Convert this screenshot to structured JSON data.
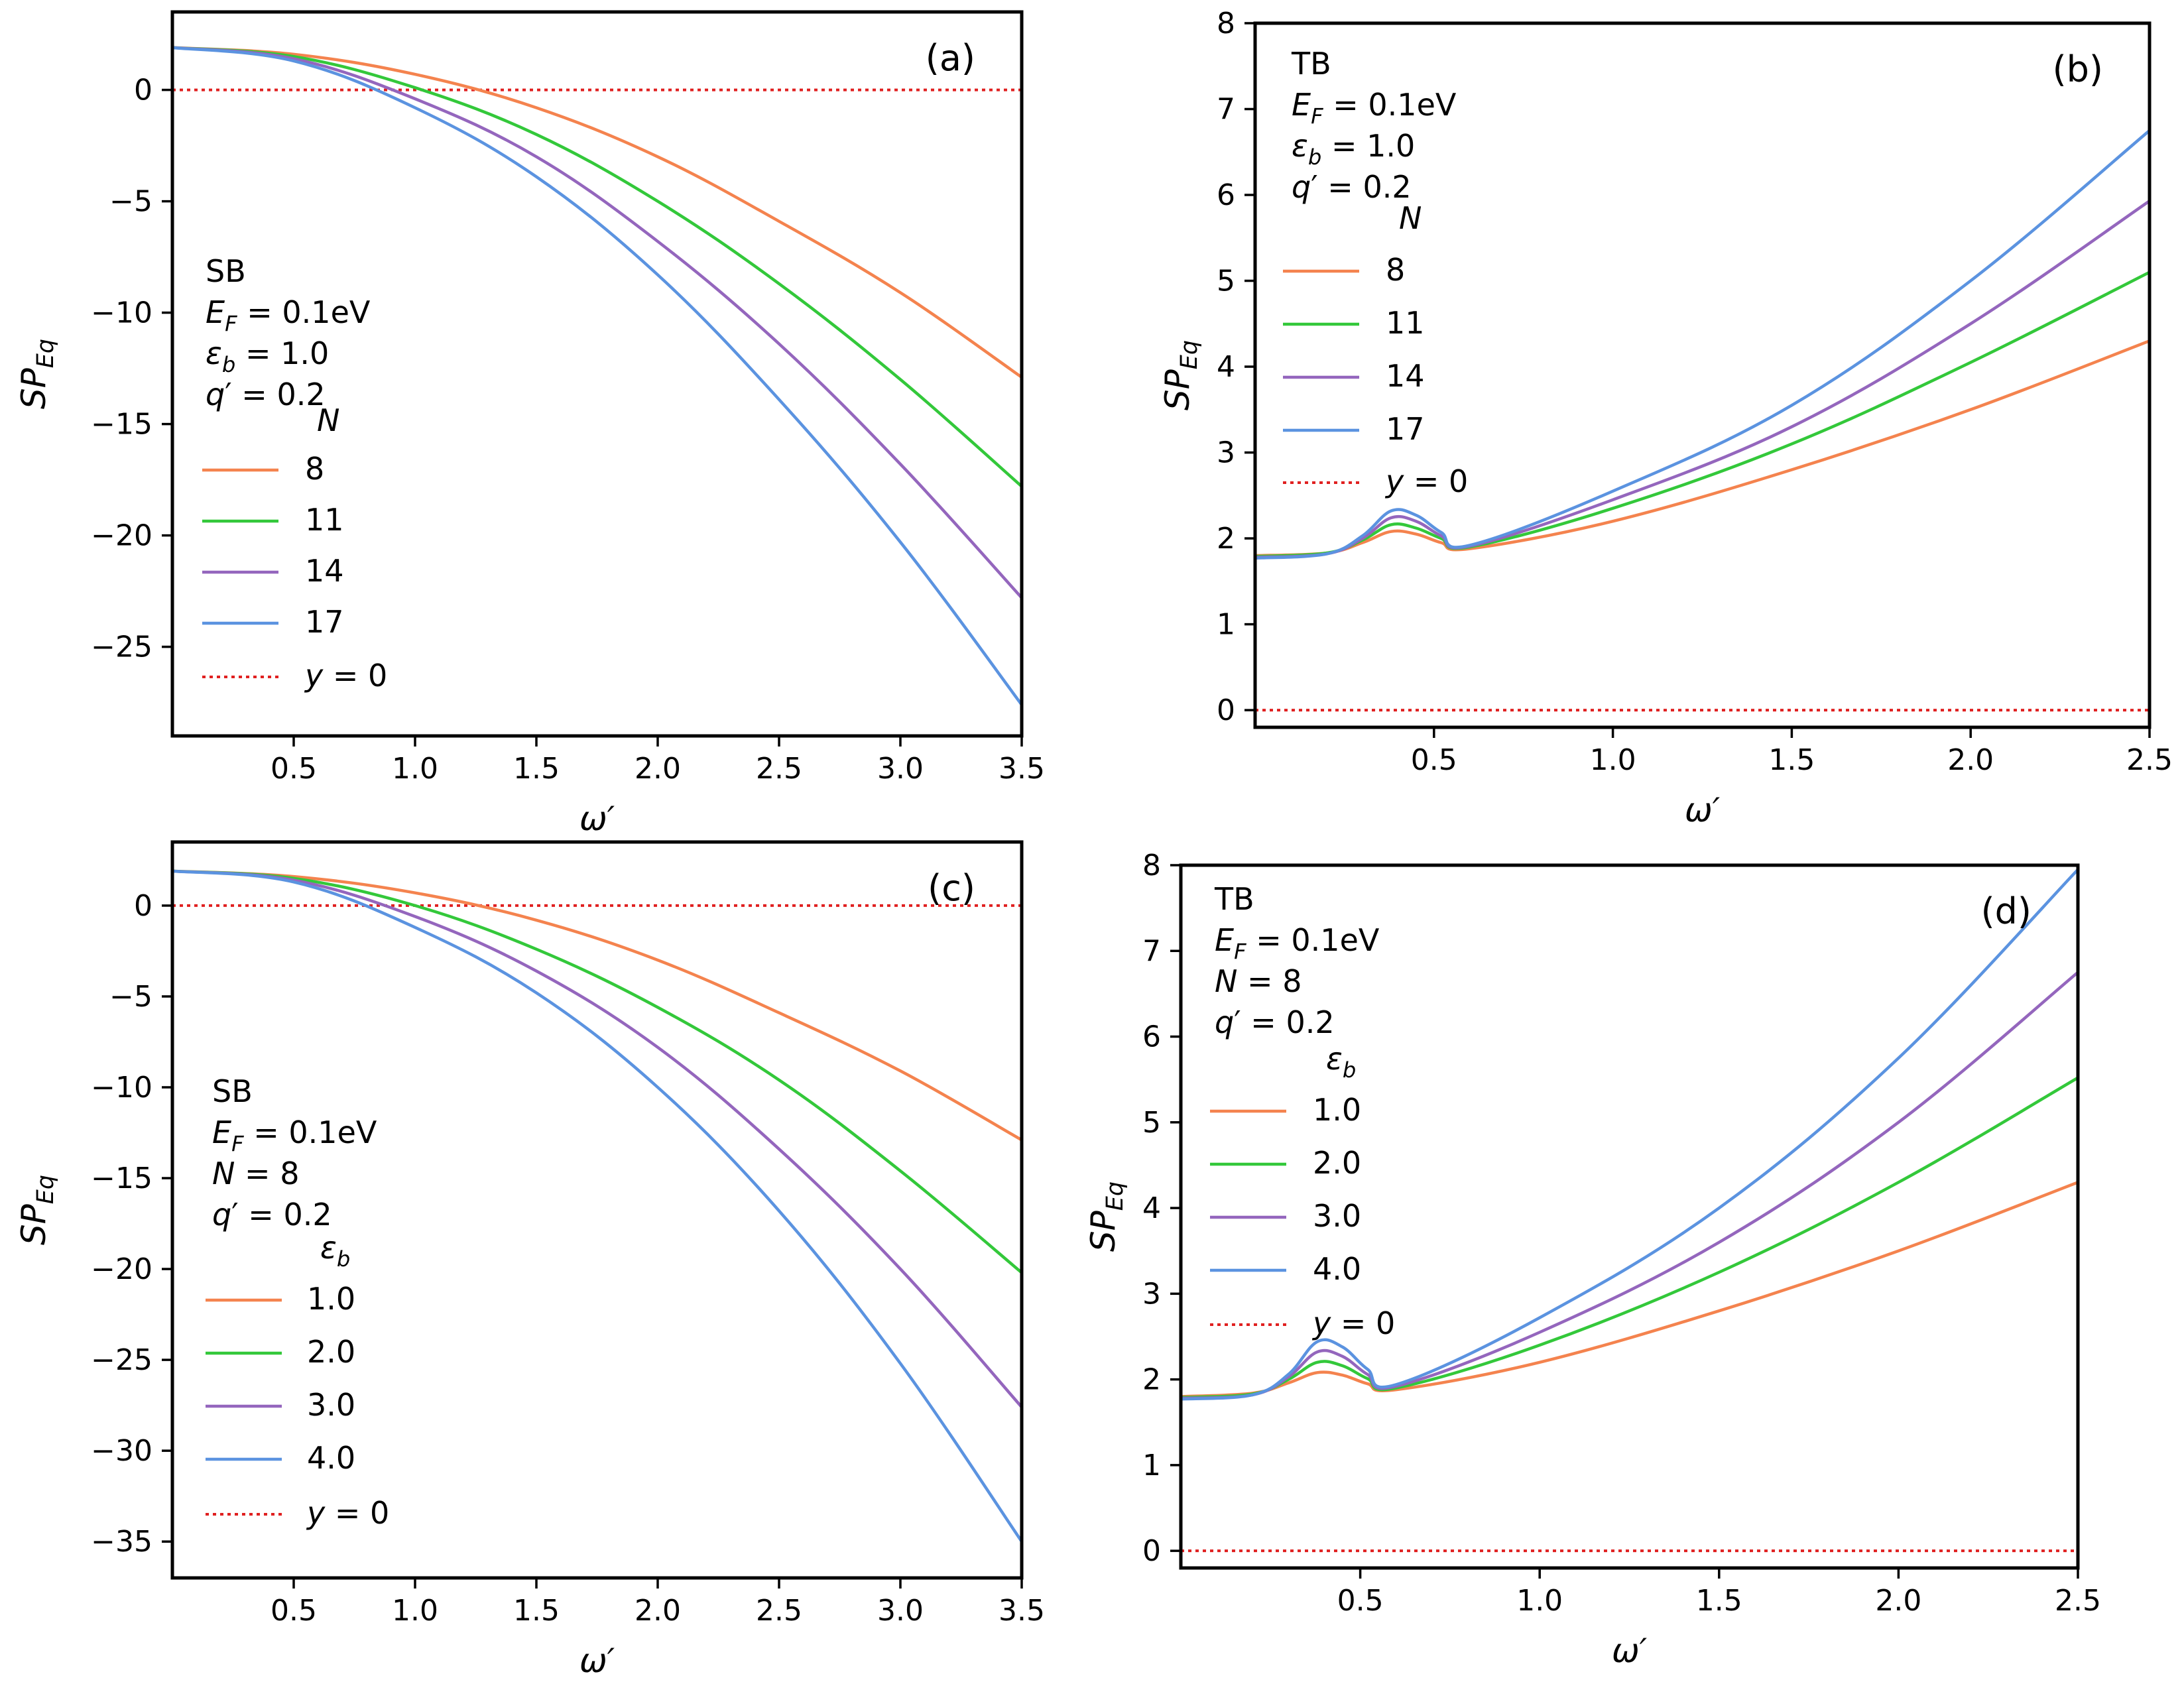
{
  "figure": {
    "xlabel": "ω′",
    "ylabel_main": "SP",
    "ylabel_sub": "Eq"
  },
  "chart_data": [
    {
      "id": "a",
      "type": "line",
      "panel_label": "(a)",
      "xlim": [
        0.0,
        3.5
      ],
      "ylim": [
        -29,
        3.5
      ],
      "xticks": [
        0.5,
        1.0,
        1.5,
        2.0,
        2.5,
        3.0,
        3.5
      ],
      "xtick_labels": [
        "0.5",
        "1.0",
        "1.5",
        "2.0",
        "2.5",
        "3.0",
        "3.5"
      ],
      "yticks": [
        0,
        -5,
        -10,
        -15,
        -20,
        -25
      ],
      "ytick_labels": [
        "0",
        "−5",
        "−10",
        "−15",
        "−20",
        "−25"
      ],
      "params": [
        "SB",
        "E_F = 0.1eV",
        "ε_b = 1.0",
        "q′ = 0.2"
      ],
      "legend_title": "N",
      "legend_position": "center-left",
      "refline_label": "y = 0",
      "series": [
        {
          "name": "8",
          "color": "#F4834E",
          "x": [
            0.0,
            0.5,
            1.0,
            1.5,
            2.0,
            2.5,
            3.0,
            3.5
          ],
          "y": [
            1.9,
            1.6,
            0.7,
            -0.8,
            -3.0,
            -5.9,
            -9.1,
            -12.9
          ]
        },
        {
          "name": "11",
          "color": "#33C83A",
          "x": [
            0.0,
            0.5,
            1.0,
            1.5,
            2.0,
            2.5,
            3.0,
            3.5
          ],
          "y": [
            1.9,
            1.5,
            0.1,
            -2.0,
            -5.0,
            -8.7,
            -13.0,
            -17.8
          ]
        },
        {
          "name": "14",
          "color": "#9466BD",
          "x": [
            0.0,
            0.5,
            1.0,
            1.5,
            2.0,
            2.5,
            3.0,
            3.5
          ],
          "y": [
            1.9,
            1.4,
            -0.4,
            -3.0,
            -6.8,
            -11.4,
            -16.8,
            -22.8
          ]
        },
        {
          "name": "17",
          "color": "#5B93E0",
          "x": [
            0.0,
            0.5,
            1.0,
            1.5,
            2.0,
            2.5,
            3.0,
            3.5
          ],
          "y": [
            1.9,
            1.3,
            -0.8,
            -3.9,
            -8.3,
            -13.9,
            -20.3,
            -27.6
          ]
        }
      ]
    },
    {
      "id": "b",
      "type": "line",
      "panel_label": "(b)",
      "xlim": [
        0.0,
        2.5
      ],
      "ylim": [
        -0.2,
        8.0
      ],
      "xticks": [
        0.5,
        1.0,
        1.5,
        2.0,
        2.5
      ],
      "xtick_labels": [
        "0.5",
        "1.0",
        "1.5",
        "2.0",
        "2.5"
      ],
      "yticks": [
        0,
        1,
        2,
        3,
        4,
        5,
        6,
        7,
        8
      ],
      "ytick_labels": [
        "0",
        "1",
        "2",
        "3",
        "4",
        "5",
        "6",
        "7",
        "8"
      ],
      "params": [
        "TB",
        "E_F = 0.1eV",
        "ε_b = 1.0",
        "q′ = 0.2"
      ],
      "legend_title": "N",
      "legend_position": "upper-left",
      "refline_label": "y = 0",
      "series": [
        {
          "name": "8",
          "color": "#F4834E",
          "x": [
            0.0,
            0.2,
            0.3,
            0.38,
            0.45,
            0.52,
            0.6,
            1.0,
            1.5,
            2.0,
            2.5
          ],
          "y": [
            1.8,
            1.83,
            1.95,
            2.08,
            2.05,
            1.95,
            1.88,
            2.2,
            2.8,
            3.5,
            4.3
          ]
        },
        {
          "name": "11",
          "color": "#33C83A",
          "x": [
            0.0,
            0.2,
            0.3,
            0.38,
            0.45,
            0.52,
            0.6,
            1.0,
            1.5,
            2.0,
            2.5
          ],
          "y": [
            1.79,
            1.83,
            1.98,
            2.16,
            2.12,
            2.0,
            1.9,
            2.35,
            3.1,
            4.05,
            5.1
          ]
        },
        {
          "name": "14",
          "color": "#9466BD",
          "x": [
            0.0,
            0.2,
            0.3,
            0.38,
            0.45,
            0.52,
            0.6,
            1.0,
            1.5,
            2.0,
            2.5
          ],
          "y": [
            1.78,
            1.82,
            2.0,
            2.24,
            2.2,
            2.03,
            1.91,
            2.45,
            3.3,
            4.5,
            5.93
          ]
        },
        {
          "name": "17",
          "color": "#5B93E0",
          "x": [
            0.0,
            0.2,
            0.3,
            0.38,
            0.45,
            0.52,
            0.6,
            1.0,
            1.5,
            2.0,
            2.5
          ],
          "y": [
            1.77,
            1.82,
            2.03,
            2.32,
            2.27,
            2.07,
            1.92,
            2.55,
            3.55,
            5.0,
            6.75
          ]
        }
      ]
    },
    {
      "id": "c",
      "type": "line",
      "panel_label": "(c)",
      "xlim": [
        0.0,
        3.5
      ],
      "ylim": [
        -37,
        3.5
      ],
      "xticks": [
        0.5,
        1.0,
        1.5,
        2.0,
        2.5,
        3.0,
        3.5
      ],
      "xtick_labels": [
        "0.5",
        "1.0",
        "1.5",
        "2.0",
        "2.5",
        "3.0",
        "3.5"
      ],
      "yticks": [
        0,
        -5,
        -10,
        -15,
        -20,
        -25,
        -30,
        -35
      ],
      "ytick_labels": [
        "0",
        "−5",
        "−10",
        "−15",
        "−20",
        "−25",
        "−30",
        "−35"
      ],
      "params": [
        "SB",
        "E_F = 0.1eV",
        "N = 8",
        "q′ = 0.2"
      ],
      "legend_title": "ε_b",
      "legend_position": "lower-left",
      "refline_label": "y = 0",
      "series": [
        {
          "name": "1.0",
          "color": "#F4834E",
          "x": [
            0.0,
            0.5,
            1.0,
            1.5,
            2.0,
            2.5,
            3.0,
            3.5
          ],
          "y": [
            1.9,
            1.6,
            0.7,
            -0.8,
            -3.0,
            -5.9,
            -9.1,
            -12.9
          ]
        },
        {
          "name": "2.0",
          "color": "#33C83A",
          "x": [
            0.0,
            0.5,
            1.0,
            1.5,
            2.0,
            2.5,
            3.0,
            3.5
          ],
          "y": [
            1.9,
            1.5,
            0.0,
            -2.4,
            -5.6,
            -9.6,
            -14.6,
            -20.2
          ]
        },
        {
          "name": "3.0",
          "color": "#9466BD",
          "x": [
            0.0,
            0.5,
            1.0,
            1.5,
            2.0,
            2.5,
            3.0,
            3.5
          ],
          "y": [
            1.9,
            1.4,
            -0.6,
            -3.6,
            -7.8,
            -13.4,
            -20.0,
            -27.6
          ]
        },
        {
          "name": "4.0",
          "color": "#5B93E0",
          "x": [
            0.0,
            0.5,
            1.0,
            1.5,
            2.0,
            2.5,
            3.0,
            3.5
          ],
          "y": [
            1.9,
            1.3,
            -1.2,
            -4.8,
            -10.0,
            -16.8,
            -25.2,
            -35.0
          ]
        }
      ]
    },
    {
      "id": "d",
      "type": "line",
      "panel_label": "(d)",
      "xlim": [
        0.0,
        2.5
      ],
      "ylim": [
        -0.2,
        8.0
      ],
      "xticks": [
        0.5,
        1.0,
        1.5,
        2.0,
        2.5
      ],
      "xtick_labels": [
        "0.5",
        "1.0",
        "1.5",
        "2.0",
        "2.5"
      ],
      "yticks": [
        0,
        1,
        2,
        3,
        4,
        5,
        6,
        7,
        8
      ],
      "ytick_labels": [
        "0",
        "1",
        "2",
        "3",
        "4",
        "5",
        "6",
        "7",
        "8"
      ],
      "params": [
        "TB",
        "E_F = 0.1eV",
        "N = 8",
        "q′ = 0.2"
      ],
      "legend_title": "ε_b",
      "legend_position": "upper-left",
      "refline_label": "y = 0",
      "series": [
        {
          "name": "1.0",
          "color": "#F4834E",
          "x": [
            0.0,
            0.2,
            0.3,
            0.38,
            0.45,
            0.52,
            0.6,
            1.0,
            1.5,
            2.0,
            2.5
          ],
          "y": [
            1.8,
            1.84,
            1.96,
            2.08,
            2.05,
            1.95,
            1.88,
            2.2,
            2.8,
            3.5,
            4.3
          ]
        },
        {
          "name": "2.0",
          "color": "#33C83A",
          "x": [
            0.0,
            0.2,
            0.3,
            0.38,
            0.45,
            0.52,
            0.6,
            1.0,
            1.5,
            2.0,
            2.5
          ],
          "y": [
            1.79,
            1.83,
            2.0,
            2.2,
            2.16,
            2.01,
            1.9,
            2.4,
            3.25,
            4.3,
            5.52
          ]
        },
        {
          "name": "3.0",
          "color": "#9466BD",
          "x": [
            0.0,
            0.2,
            0.3,
            0.38,
            0.45,
            0.52,
            0.6,
            1.0,
            1.5,
            2.0,
            2.5
          ],
          "y": [
            1.78,
            1.82,
            2.03,
            2.32,
            2.27,
            2.06,
            1.92,
            2.55,
            3.6,
            5.0,
            6.75
          ]
        },
        {
          "name": "4.0",
          "color": "#5B93E0",
          "x": [
            0.0,
            0.2,
            0.3,
            0.38,
            0.45,
            0.52,
            0.6,
            1.0,
            1.5,
            2.0,
            2.5
          ],
          "y": [
            1.77,
            1.82,
            2.06,
            2.44,
            2.38,
            2.12,
            1.94,
            2.72,
            4.0,
            5.75,
            7.95
          ]
        }
      ]
    }
  ]
}
